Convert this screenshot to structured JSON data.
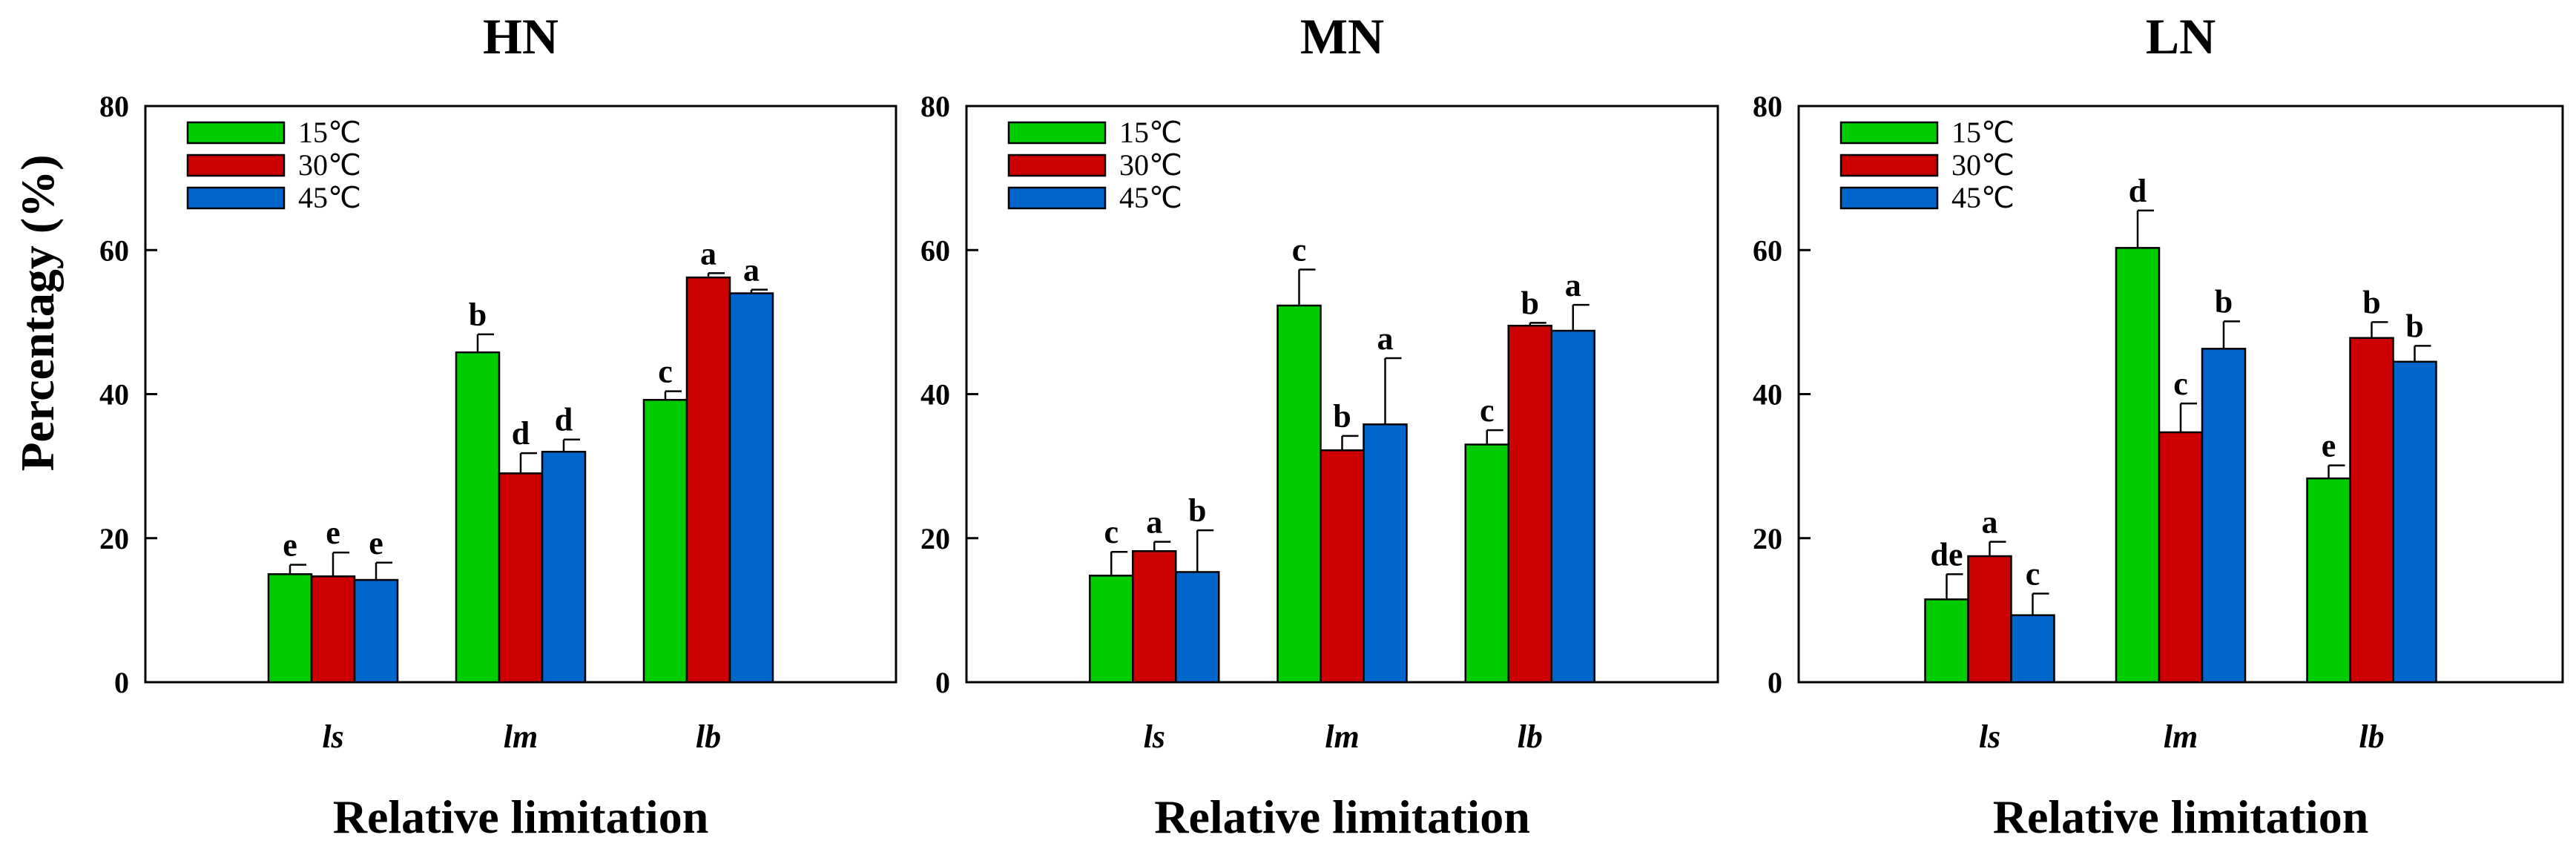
{
  "ylabel": "Percentagy (%)",
  "legend_placement": "top-left",
  "chart_data": [
    {
      "type": "bar",
      "title": "HN",
      "xlabel": "Relative limitation",
      "categories": [
        "ls",
        "lm",
        "lb"
      ],
      "ylim": [
        0,
        80
      ],
      "yticks": [
        "0",
        "20",
        "40",
        "60",
        "80"
      ],
      "series": [
        {
          "name": "15℃",
          "color": "#00CC00",
          "values": [
            15,
            45.8,
            39.2
          ],
          "errors": [
            1.3,
            2.5,
            1.2
          ],
          "letters": [
            "e",
            "b",
            "c"
          ]
        },
        {
          "name": "30℃",
          "color": "#CC0000",
          "values": [
            14.7,
            29,
            56.2
          ],
          "errors": [
            3.3,
            2.8,
            0.6
          ],
          "letters": [
            "e",
            "d",
            "a"
          ]
        },
        {
          "name": "45℃",
          "color": "#0066CC",
          "values": [
            14.2,
            32,
            54
          ],
          "errors": [
            2.4,
            1.7,
            0.5
          ],
          "letters": [
            "e",
            "d",
            "a"
          ]
        }
      ]
    },
    {
      "type": "bar",
      "title": "MN",
      "xlabel": "Relative limitation",
      "categories": [
        "ls",
        "lm",
        "lb"
      ],
      "ylim": [
        0,
        80
      ],
      "yticks": [
        "0",
        "20",
        "40",
        "60",
        "80"
      ],
      "series": [
        {
          "name": "15℃",
          "color": "#00CC00",
          "values": [
            14.8,
            52.3,
            33
          ],
          "errors": [
            3.3,
            5,
            2
          ]
        },
        {
          "name": "30℃",
          "color": "#CC0000",
          "values": [
            18.2,
            32.2,
            49.5
          ],
          "errors": [
            1.3,
            2,
            0.4
          ]
        },
        {
          "name": "45℃",
          "color": "#0066CC",
          "values": [
            15.3,
            35.8,
            48.8
          ],
          "errors": [
            5.8,
            9.2,
            3.6
          ]
        }
      ],
      "letters": [
        [
          "c",
          "a",
          "b"
        ],
        [
          "c",
          "b",
          "a"
        ],
        [
          "c",
          "b",
          "a"
        ]
      ]
    },
    {
      "type": "bar",
      "title": "LN",
      "xlabel": "Relative limitation",
      "categories": [
        "ls",
        "lm",
        "lb"
      ],
      "ylim": [
        0,
        80
      ],
      "yticks": [
        "0",
        "20",
        "40",
        "60",
        "80"
      ],
      "series": [
        {
          "name": "15℃",
          "color": "#00CC00",
          "values": [
            11.5,
            60.3,
            28.3
          ],
          "errors": [
            3.5,
            5.2,
            1.8
          ]
        },
        {
          "name": "30℃",
          "color": "#CC0000",
          "values": [
            17.5,
            34.7,
            47.8
          ],
          "errors": [
            2,
            4,
            2.2
          ]
        },
        {
          "name": "45℃",
          "color": "#0066CC",
          "values": [
            9.3,
            46.3,
            44.5
          ],
          "errors": [
            3,
            3.8,
            2.2
          ]
        }
      ],
      "letters": [
        [
          "de",
          "a",
          "c"
        ],
        [
          "d",
          "c",
          "b"
        ],
        [
          "e",
          "b",
          "b"
        ]
      ]
    }
  ]
}
